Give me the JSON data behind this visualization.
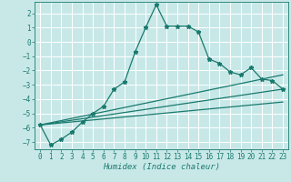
{
  "xlabel": "Humidex (Indice chaleur)",
  "background_color": "#c8e8e8",
  "grid_color": "#ffffff",
  "line_color": "#1a7a6e",
  "xlim": [
    -0.5,
    23.5
  ],
  "ylim": [
    -7.5,
    2.8
  ],
  "yticks": [
    -7,
    -6,
    -5,
    -4,
    -3,
    -2,
    -1,
    0,
    1,
    2
  ],
  "xticks": [
    0,
    1,
    2,
    3,
    4,
    5,
    6,
    7,
    8,
    9,
    10,
    11,
    12,
    13,
    14,
    15,
    16,
    17,
    18,
    19,
    20,
    21,
    22,
    23
  ],
  "main_x": [
    0,
    1,
    2,
    3,
    4,
    5,
    6,
    7,
    8,
    9,
    10,
    11,
    12,
    13,
    14,
    15,
    16,
    17,
    18,
    19,
    20,
    21,
    22,
    23
  ],
  "main_y": [
    -5.8,
    -7.2,
    -6.8,
    -6.3,
    -5.6,
    -5.0,
    -4.5,
    -3.3,
    -2.8,
    -0.7,
    1.0,
    2.6,
    1.1,
    1.1,
    1.1,
    0.7,
    -1.2,
    -1.5,
    -2.1,
    -2.3,
    -1.8,
    -2.6,
    -2.7,
    -3.3
  ],
  "line1_x": [
    0,
    23
  ],
  "line1_y": [
    -5.8,
    -2.3
  ],
  "line2_x": [
    0,
    23
  ],
  "line2_y": [
    -5.8,
    -3.3
  ],
  "line3_x": [
    0,
    23
  ],
  "line3_y": [
    -5.8,
    -4.2
  ]
}
